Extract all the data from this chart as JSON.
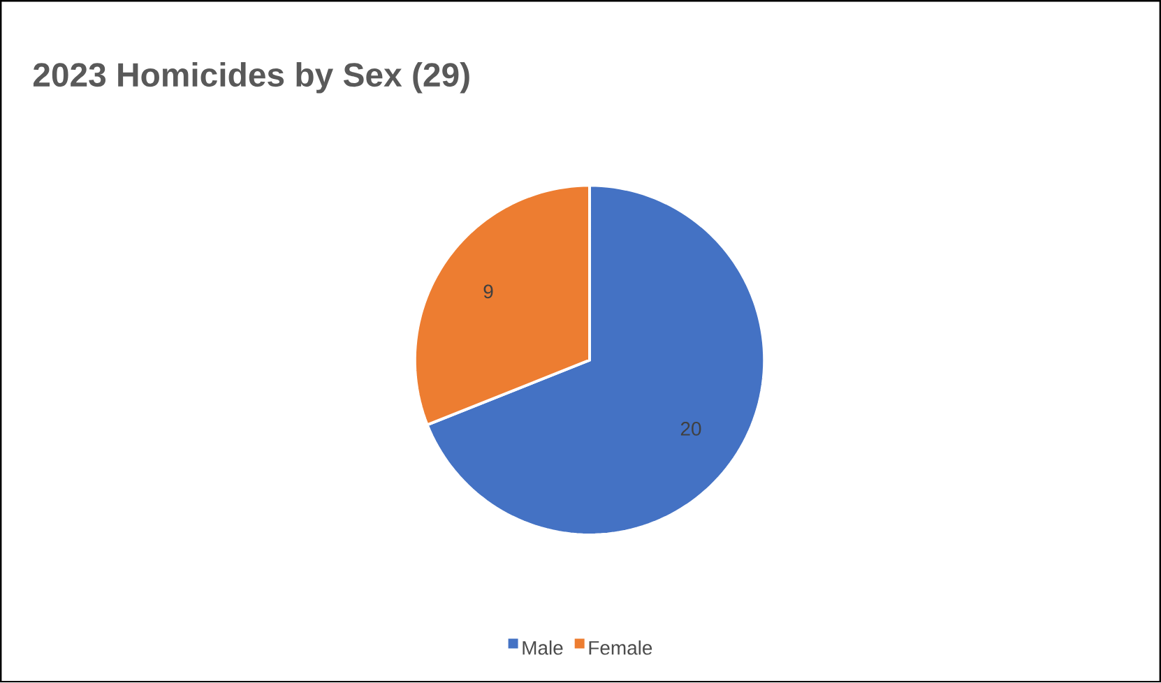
{
  "chart_data": {
    "type": "pie",
    "title": "2023 Homicides by Sex (29)",
    "categories": [
      "Male",
      "Female"
    ],
    "values": [
      20,
      9
    ],
    "colors": [
      "#4472c4",
      "#ed7d31"
    ],
    "data_labels": true,
    "legend": "bottom"
  }
}
